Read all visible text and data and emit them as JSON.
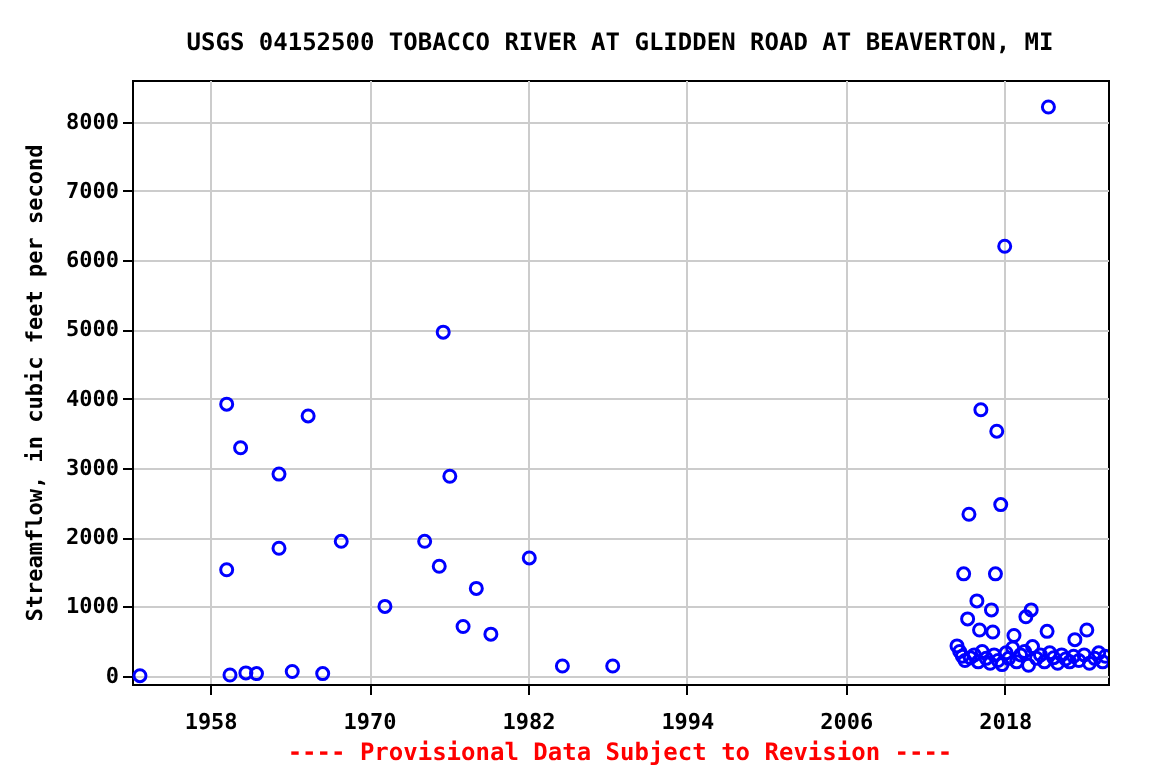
{
  "chart_data": {
    "type": "scatter",
    "title": "USGS 04152500 TOBACCO RIVER AT GLIDDEN ROAD AT BEAVERTON, MI",
    "ylabel": "Streamflow, in cubic feet per second",
    "annotations": [
      "---- Provisional Data Subject to Revision ----"
    ],
    "x": [
      1952.7,
      1959.25,
      1959.25,
      1959.5,
      1960.3,
      1960.7,
      1961.5,
      1963.2,
      1963.2,
      1964.2,
      1965.4,
      1966.5,
      1967.9,
      1971.2,
      1974.2,
      1975.3,
      1975.6,
      1976.1,
      1977.1,
      1978.1,
      1979.2,
      1982.1,
      1984.6,
      1988.4,
      2021.3,
      2018.0,
      2016.2,
      2017.4,
      2017.7,
      2015.3,
      2014.9,
      2017.3,
      2015.9,
      2017.0,
      2015.2,
      2020.0,
      2019.6,
      2016.1,
      2017.1,
      2024.2,
      2021.2,
      2018.7,
      2023.3,
      2014.4,
      2014.6,
      2014.8,
      2015.0,
      2015.4,
      2015.7,
      2016.0,
      2016.3,
      2016.6,
      2016.9,
      2017.2,
      2017.5,
      2017.8,
      2018.1,
      2018.3,
      2018.6,
      2018.9,
      2019.2,
      2019.5,
      2019.8,
      2020.1,
      2020.4,
      2020.7,
      2021.0,
      2021.4,
      2021.7,
      2022.0,
      2022.3,
      2022.6,
      2022.9,
      2023.2,
      2023.6,
      2024.0,
      2024.4,
      2024.8,
      2025.1,
      2025.4,
      2025.6
    ],
    "series": [
      {
        "color": "#0000ff",
        "values": [
          0,
          3920,
          1530,
          10,
          3290,
          40,
          30,
          2910,
          1840,
          60,
          3750,
          30,
          1940,
          1000,
          1940,
          1580,
          4960,
          2880,
          710,
          1260,
          600,
          1700,
          140,
          140,
          8210,
          6200,
          3840,
          3530,
          2470,
          2330,
          1470,
          1470,
          1080,
          950,
          820,
          950,
          850,
          660,
          630,
          660,
          640,
          580,
          520,
          430,
          350,
          280,
          220,
          260,
          300,
          200,
          350,
          250,
          180,
          300,
          220,
          160,
          330,
          250,
          400,
          200,
          300,
          350,
          150,
          420,
          250,
          300,
          200,
          330,
          260,
          180,
          300,
          240,
          200,
          280,
          220,
          300,
          180,
          250,
          330,
          200,
          280
        ]
      }
    ],
    "xlim": [
      1952.1,
      2025.8
    ],
    "ylim": [
      -120,
      8600
    ],
    "xticks": [
      1958,
      1970,
      1982,
      1994,
      2006,
      2018
    ],
    "yticks": [
      0,
      1000,
      2000,
      3000,
      4000,
      5000,
      6000,
      7000,
      8000
    ],
    "grid": true,
    "marker": "circle"
  }
}
